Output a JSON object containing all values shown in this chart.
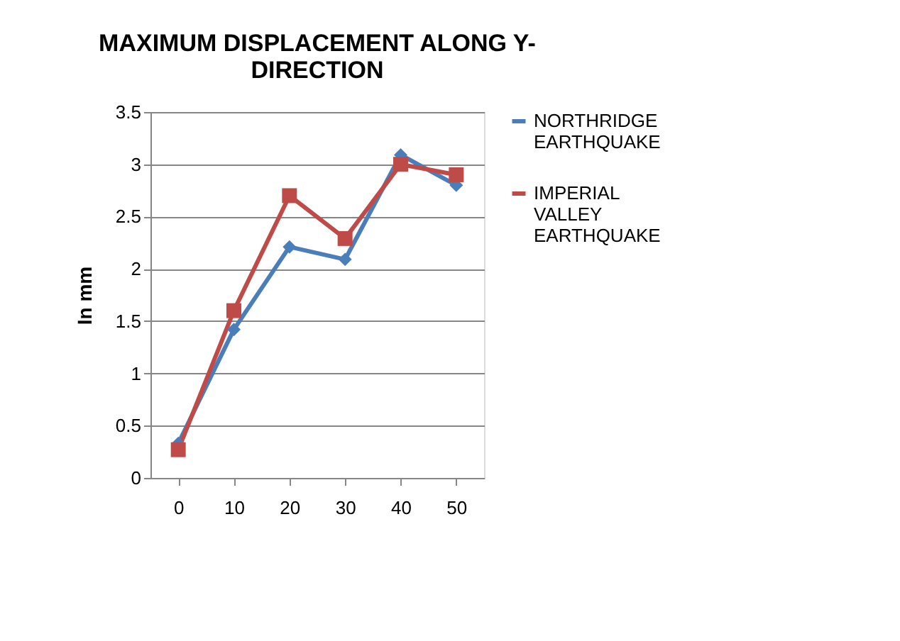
{
  "chart_data": {
    "type": "line",
    "title": "MAXIMUM DISPLACEMENT ALONG Y-DIRECTION",
    "ylabel": "In mm",
    "categories": [
      "0",
      "10",
      "20",
      "30",
      "40",
      "50"
    ],
    "series": [
      {
        "name": "NORTHRIDGE EARTHQUAKE",
        "color": "#4a7ebb",
        "marker": "diamond",
        "values": [
          0.33,
          1.42,
          2.21,
          2.09,
          3.09,
          2.8
        ]
      },
      {
        "name": "IMPERIAL VALLEY EARTHQUAKE",
        "color": "#be4b48",
        "marker": "square",
        "values": [
          0.27,
          1.6,
          2.7,
          2.29,
          3.0,
          2.9
        ]
      }
    ],
    "ylim": [
      0,
      3.5
    ],
    "yticks": [
      0,
      0.5,
      1,
      1.5,
      2,
      2.5,
      3,
      3.5
    ],
    "grid": "y",
    "legend": "right",
    "line_style": "solid"
  }
}
